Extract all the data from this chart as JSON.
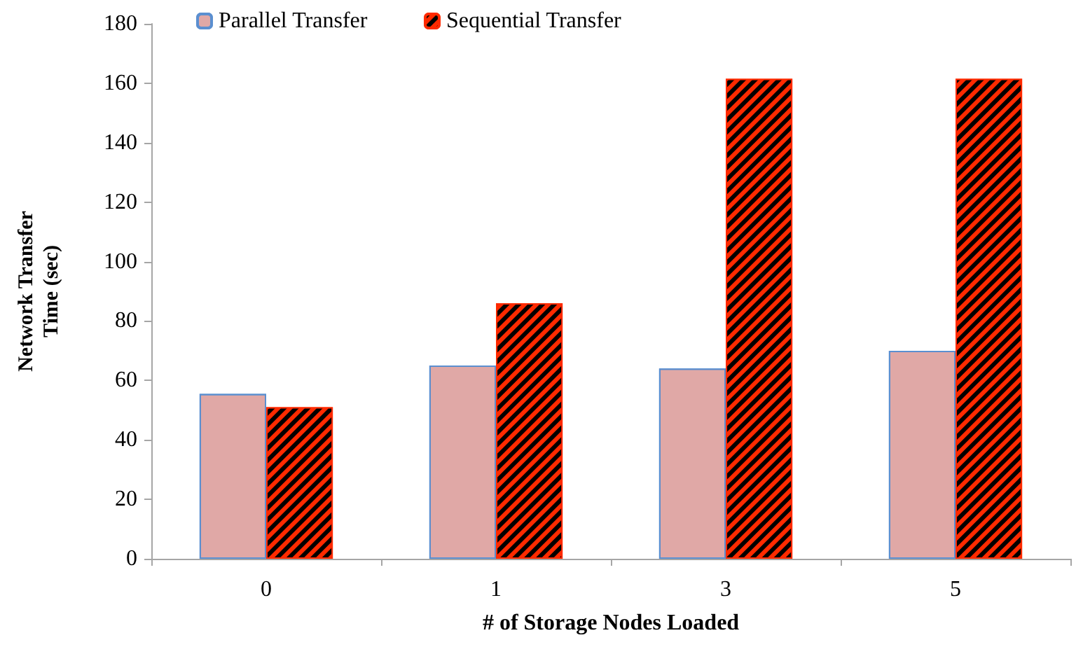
{
  "chart_data": {
    "type": "bar",
    "xlabel": "# of Storage Nodes Loaded",
    "ylabel": "Network Transfer\nTime (sec)",
    "categories": [
      "0",
      "1",
      "3",
      "5"
    ],
    "series": [
      {
        "name": "Parallel Transfer",
        "color": "#e0a8a6",
        "values": [
          55.5,
          65,
          64,
          70
        ]
      },
      {
        "name": "Sequential Transfer",
        "color": "#ff2a00",
        "values": [
          51,
          86,
          161.5,
          161.5
        ]
      }
    ],
    "ylim": [
      0,
      180
    ],
    "yticks": [
      0,
      20,
      40,
      60,
      80,
      100,
      120,
      140,
      160,
      180
    ],
    "grid": false,
    "legend": "top left"
  }
}
